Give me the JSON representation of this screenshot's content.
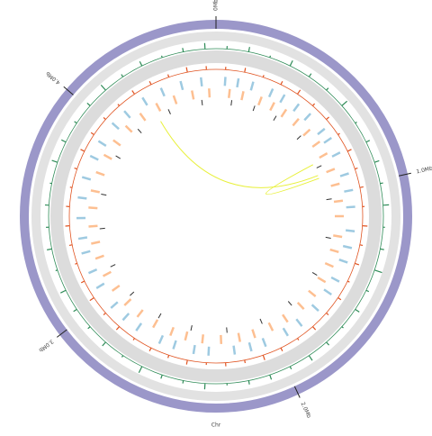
{
  "chart_data": {
    "type": "circos",
    "xlabel": "Chr",
    "xlim": [
      0,
      4.64
    ],
    "xticks": [
      {
        "value": 0,
        "label": "0Mb"
      },
      {
        "value": 1,
        "label": "1.0Mb"
      },
      {
        "value": 2,
        "label": "2.0Mb"
      },
      {
        "value": 3,
        "label": "3.0Mb"
      },
      {
        "value": 4,
        "label": "4.0Mb"
      }
    ],
    "ring_color": "#9b97c9",
    "gc_content": {
      "color": "#2e8b57",
      "ylim": [
        0,
        10
      ],
      "values": [
        3,
        5,
        2,
        6,
        4,
        3,
        7,
        2,
        4,
        5,
        3,
        6,
        2,
        4,
        8,
        3,
        5,
        2,
        4,
        6,
        3,
        5,
        4,
        2,
        6,
        3,
        4,
        7,
        2,
        5,
        3,
        4,
        6,
        2,
        5,
        3,
        4,
        2,
        6,
        5,
        3,
        4,
        7,
        3,
        5,
        2,
        4,
        6
      ]
    },
    "gc_skew": {
      "color": "#e0521f",
      "ylim": [
        0,
        10
      ],
      "values": [
        4,
        6,
        3,
        5,
        7,
        4,
        5,
        3,
        6,
        4,
        5,
        3,
        7,
        4,
        6,
        3,
        5,
        4,
        6,
        3,
        5,
        7,
        4,
        5,
        3,
        6,
        4,
        5,
        3,
        6,
        4,
        7,
        5,
        3,
        4,
        6,
        5,
        3,
        4,
        6,
        5,
        4,
        3,
        6,
        5,
        4,
        7,
        5
      ]
    },
    "forward_genes": {
      "color": "#9ecae1",
      "positions": [
        0.05,
        0.12,
        0.2,
        0.31,
        0.38,
        0.47,
        0.55,
        0.66,
        0.72,
        0.81,
        0.93,
        1.02,
        1.11,
        1.24,
        1.33,
        1.41,
        1.52,
        1.6,
        1.71,
        1.83,
        1.92,
        2.05,
        2.13,
        2.22,
        2.36,
        2.44,
        2.55,
        2.63,
        2.77,
        2.86,
        2.95,
        3.08,
        3.17,
        3.28,
        3.36,
        3.47,
        3.58,
        3.69,
        3.81,
        3.9,
        4.02,
        4.11,
        4.23,
        4.34,
        4.45,
        4.56
      ]
    },
    "reverse_genes": {
      "color": "#fdbf91",
      "positions": [
        0.08,
        0.16,
        0.27,
        0.35,
        0.43,
        0.52,
        0.61,
        0.7,
        0.78,
        0.88,
        0.97,
        1.07,
        1.16,
        1.28,
        1.37,
        1.46,
        1.56,
        1.66,
        1.76,
        1.88,
        1.98,
        2.09,
        2.18,
        2.29,
        2.4,
        2.5,
        2.59,
        2.7,
        2.81,
        2.91,
        3.02,
        3.12,
        3.23,
        3.32,
        3.42,
        3.53,
        3.63,
        3.74,
        3.85,
        3.95,
        4.06,
        4.17,
        4.28,
        4.39,
        4.5,
        4.6
      ]
    },
    "features": {
      "color": "#333333",
      "positions": [
        0.1,
        0.25,
        0.4,
        0.6,
        0.83,
        1.05,
        1.3,
        1.55,
        1.8,
        2.02,
        2.25,
        2.48,
        2.7,
        2.93,
        3.15,
        3.4,
        3.62,
        3.88,
        4.1,
        4.33,
        4.55
      ]
    },
    "links": {
      "color": "#e8f03a",
      "pairs": [
        [
          4.25,
          0.88
        ],
        [
          0.8,
          0.9
        ]
      ]
    }
  }
}
